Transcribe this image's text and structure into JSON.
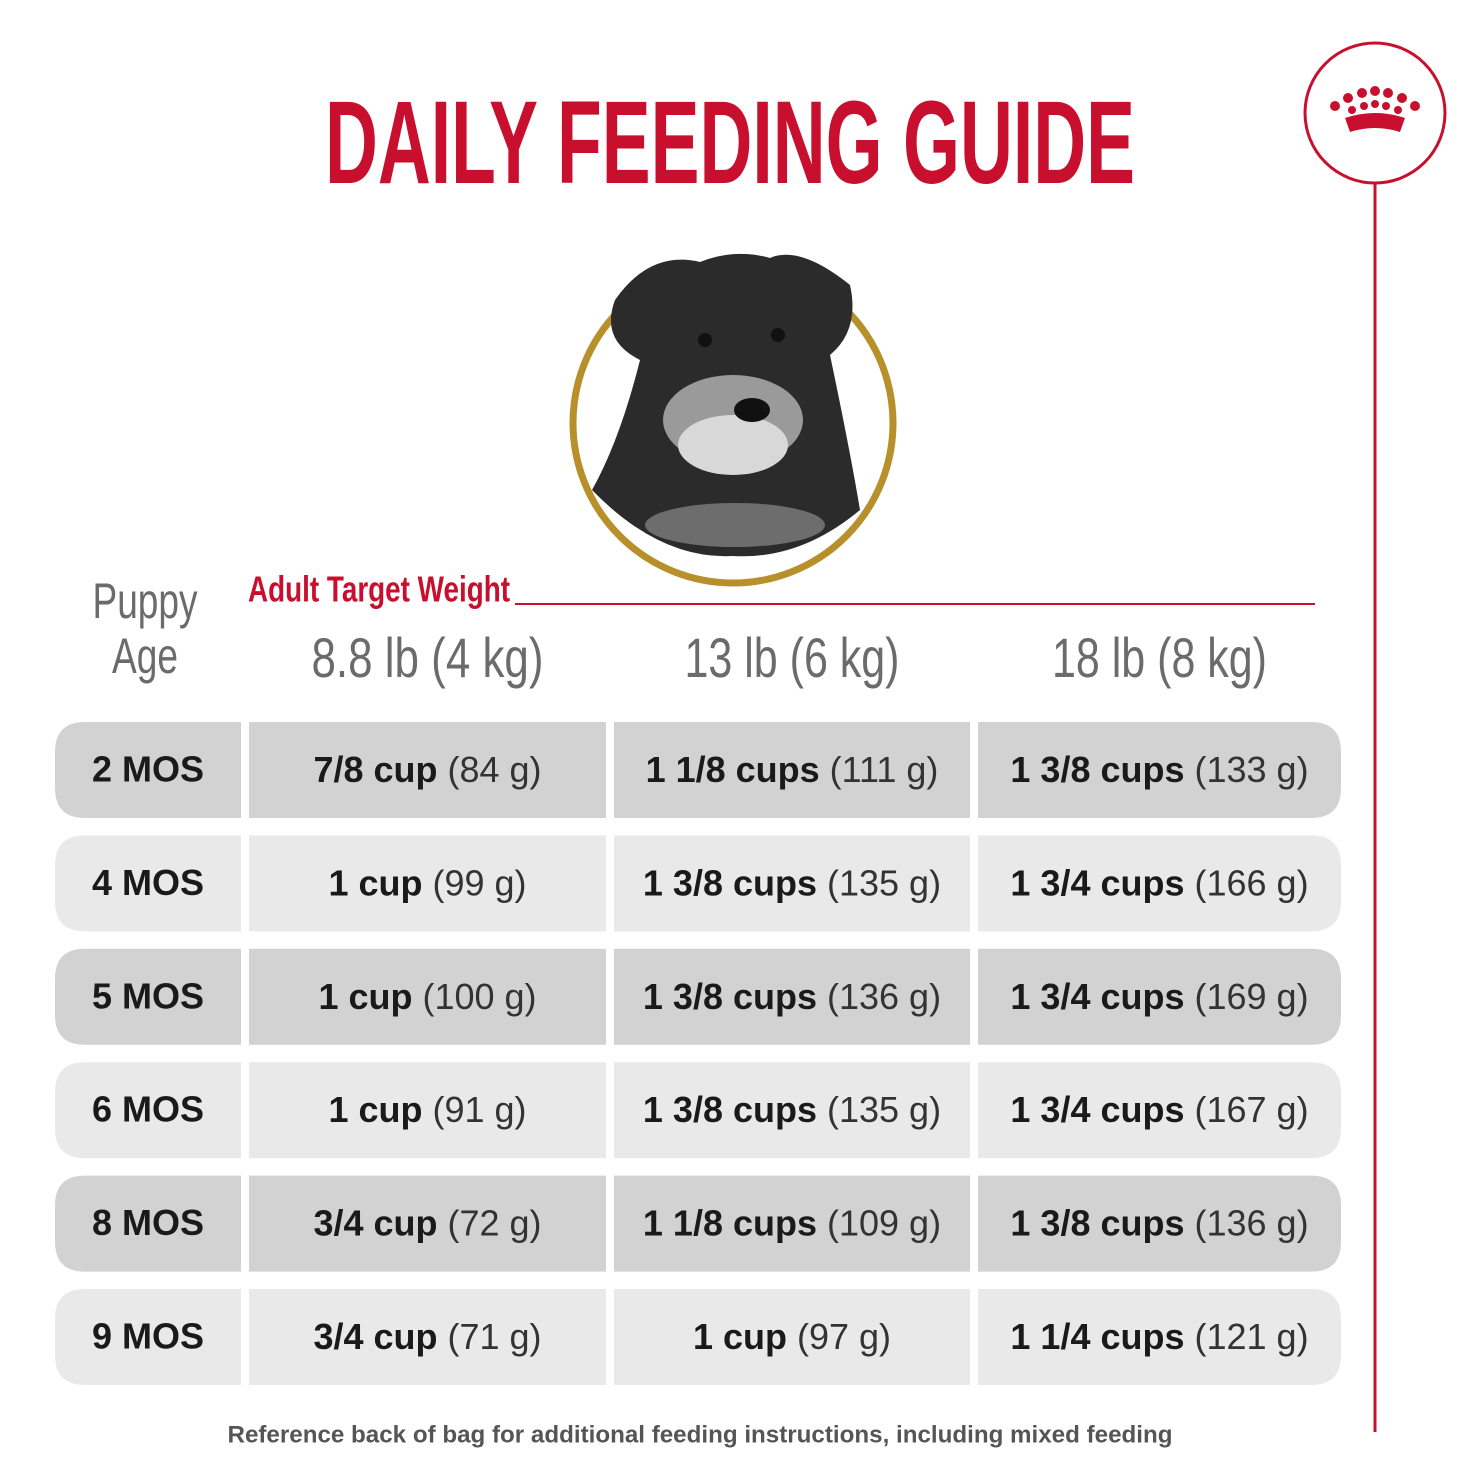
{
  "title": "DAILY FEEDING GUIDE",
  "header": {
    "age_label": [
      "Puppy",
      "Age"
    ],
    "weight_label": "Adult Target Weight",
    "columns": [
      "8.8 lb (4 kg)",
      "13 lb (6 kg)",
      "18 lb (8 kg)"
    ]
  },
  "table": {
    "rows": [
      {
        "age": "2 MOS",
        "cells": [
          {
            "amount": "7/8 cup",
            "grams": "(84 g)"
          },
          {
            "amount": "1 1/8 cups",
            "grams": "(111 g)"
          },
          {
            "amount": "1 3/8 cups",
            "grams": "(133 g)"
          }
        ]
      },
      {
        "age": "4 MOS",
        "cells": [
          {
            "amount": "1 cup",
            "grams": "(99 g)"
          },
          {
            "amount": "1 3/8 cups",
            "grams": "(135 g)"
          },
          {
            "amount": "1 3/4 cups",
            "grams": "(166 g)"
          }
        ]
      },
      {
        "age": "5 MOS",
        "cells": [
          {
            "amount": "1 cup",
            "grams": "(100 g)"
          },
          {
            "amount": "1 3/8 cups",
            "grams": "(136 g)"
          },
          {
            "amount": "1 3/4 cups",
            "grams": "(169 g)"
          }
        ]
      },
      {
        "age": "6 MOS",
        "cells": [
          {
            "amount": "1 cup",
            "grams": "(91 g)"
          },
          {
            "amount": "1 3/8 cups",
            "grams": "(135 g)"
          },
          {
            "amount": "1 3/4 cups",
            "grams": "(167 g)"
          }
        ]
      },
      {
        "age": "8 MOS",
        "cells": [
          {
            "amount": "3/4 cup",
            "grams": "(72 g)"
          },
          {
            "amount": "1 1/8 cups",
            "grams": "(109 g)"
          },
          {
            "amount": "1 3/8 cups",
            "grams": "(136 g)"
          }
        ]
      },
      {
        "age": "9 MOS",
        "cells": [
          {
            "amount": "3/4 cup",
            "grams": "(71 g)"
          },
          {
            "amount": "1 cup",
            "grams": "(97 g)"
          },
          {
            "amount": "1 1/4 cups",
            "grams": "(121 g)"
          }
        ]
      }
    ]
  },
  "footer": "Reference back of bag for additional feeding instructions, including mixed feeding"
}
